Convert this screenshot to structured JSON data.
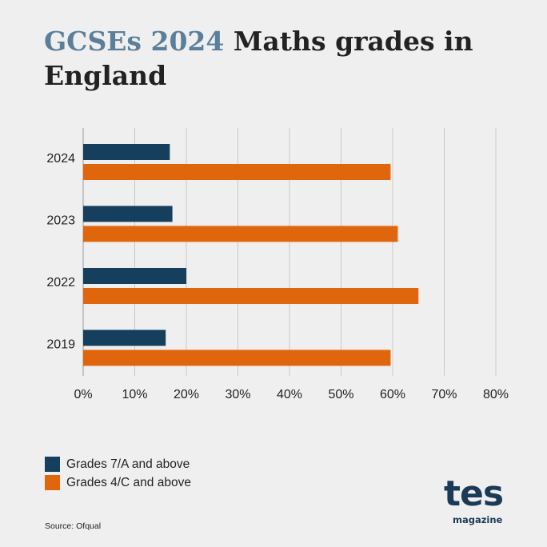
{
  "title": {
    "accent": "GCSEs 2024",
    "rest": " Maths grades in England"
  },
  "colors": {
    "series1": "#163f5e",
    "series2": "#e0660e",
    "title_accent": "#5b7f9a"
  },
  "chart_data": {
    "type": "bar",
    "orientation": "horizontal",
    "categories": [
      "2024",
      "2023",
      "2022",
      "2019"
    ],
    "series": [
      {
        "name": "Grades 7/A and above",
        "values": [
          16.8,
          17.3,
          20.0,
          16.0
        ]
      },
      {
        "name": "Grades 4/C and above",
        "values": [
          59.6,
          61.0,
          65.0,
          59.6
        ]
      }
    ],
    "xlim": [
      0,
      80
    ],
    "xticks": [
      "0%",
      "10%",
      "20%",
      "30%",
      "40%",
      "50%",
      "60%",
      "70%",
      "80%"
    ],
    "grid": true,
    "legend_position": "bottom-left"
  },
  "source": "Source: Ofqual",
  "logo": {
    "main": "tes",
    "sub": "magazine"
  }
}
